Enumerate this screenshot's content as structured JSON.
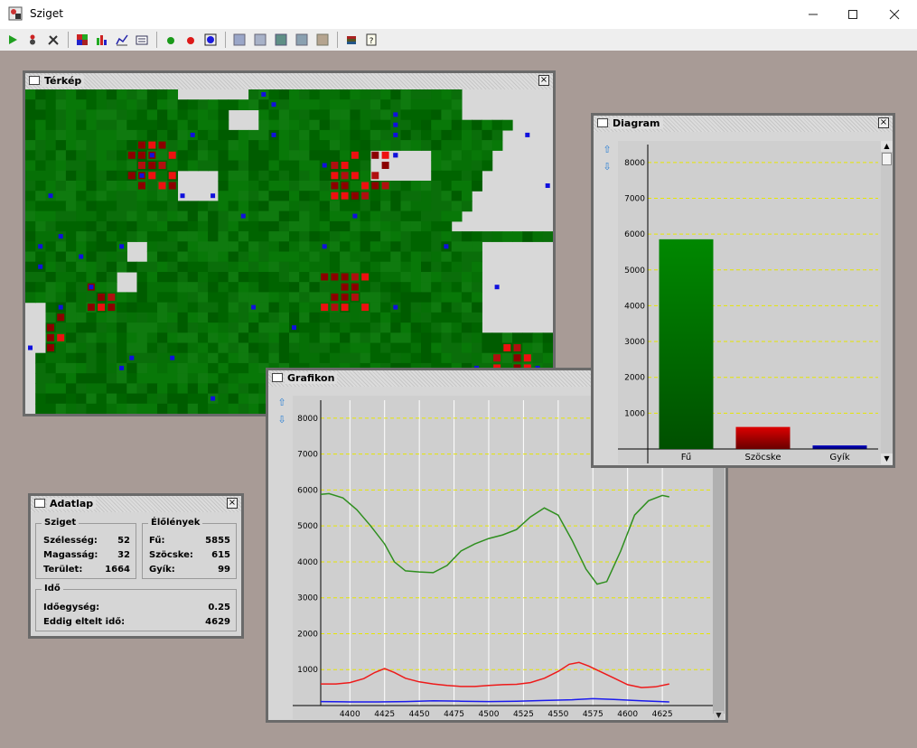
{
  "app": {
    "title": "Sziget"
  },
  "toolbar": {
    "icons": [
      "play-icon",
      "step-icon",
      "settings-tools-icon",
      "map-icon",
      "bar-chart-icon",
      "line-chart-icon",
      "data-sheet-icon",
      "green-creature-icon",
      "red-creature-icon",
      "blue-creature-icon",
      "grid-pattern-1-icon",
      "grid-pattern-2-icon",
      "grid-pattern-3-icon",
      "grid-pattern-4-icon",
      "grid-pattern-5-icon",
      "books-icon",
      "help-icon"
    ]
  },
  "map_window": {
    "title": "Térkép"
  },
  "diagram_window": {
    "title": "Diagram",
    "chart_data": {
      "type": "bar",
      "categories": [
        "Fű",
        "Szöcske",
        "Gyík"
      ],
      "values": [
        5855,
        615,
        99
      ],
      "ylim": [
        0,
        8500
      ],
      "yticks": [
        1000,
        2000,
        3000,
        4000,
        5000,
        6000,
        7000,
        8000
      ],
      "colors": [
        "#008800",
        "#dd0000",
        "#0000cc"
      ],
      "grid": true
    }
  },
  "graph_window": {
    "title": "Grafikon",
    "chart_data": {
      "type": "line",
      "xticks": [
        4400,
        4425,
        4450,
        4475,
        4500,
        4525,
        4550,
        4575,
        4600,
        4625
      ],
      "xlim": [
        4379,
        4662
      ],
      "ylim": [
        0,
        8500
      ],
      "yticks": [
        1000,
        2000,
        3000,
        4000,
        5000,
        6000,
        7000,
        8000
      ],
      "grid": true,
      "series": [
        {
          "color": "#2f8f1f",
          "x": [
            4379,
            4385,
            4395,
            4405,
            4415,
            4425,
            4432,
            4440,
            4450,
            4460,
            4470,
            4480,
            4490,
            4500,
            4510,
            4520,
            4530,
            4540,
            4550,
            4560,
            4570,
            4578,
            4585,
            4595,
            4605,
            4615,
            4625,
            4630
          ],
          "y": [
            5880,
            5900,
            5780,
            5450,
            5000,
            4500,
            4000,
            3750,
            3720,
            3700,
            3900,
            4300,
            4500,
            4650,
            4750,
            4900,
            5250,
            5500,
            5300,
            4600,
            3800,
            3380,
            3450,
            4300,
            5300,
            5700,
            5850,
            5810
          ]
        },
        {
          "color": "#ee1a1a",
          "x": [
            4379,
            4390,
            4400,
            4410,
            4418,
            4425,
            4432,
            4440,
            4450,
            4460,
            4470,
            4480,
            4490,
            4500,
            4510,
            4520,
            4530,
            4540,
            4550,
            4558,
            4565,
            4572,
            4580,
            4590,
            4600,
            4610,
            4620,
            4630
          ],
          "y": [
            600,
            600,
            640,
            750,
            920,
            1030,
            920,
            760,
            660,
            600,
            560,
            530,
            530,
            560,
            580,
            590,
            640,
            760,
            950,
            1150,
            1200,
            1100,
            950,
            770,
            580,
            500,
            520,
            600
          ]
        },
        {
          "color": "#1a1aee",
          "x": [
            4379,
            4400,
            4420,
            4440,
            4460,
            4480,
            4500,
            4520,
            4540,
            4560,
            4575,
            4590,
            4610,
            4630
          ],
          "y": [
            110,
            100,
            100,
            110,
            130,
            120,
            110,
            120,
            140,
            160,
            190,
            170,
            130,
            100
          ]
        }
      ]
    }
  },
  "adatlap_window": {
    "title": "Adatlap",
    "sziget": {
      "legend": "Sziget",
      "rows": [
        {
          "label": "Szélesség:",
          "value": "52"
        },
        {
          "label": "Magasság:",
          "value": "32"
        },
        {
          "label": "Terület:",
          "value": "1664"
        }
      ]
    },
    "elolenyek": {
      "legend": "Élőlények",
      "rows": [
        {
          "label": "Fű:",
          "value": "5855"
        },
        {
          "label": "Szöcske:",
          "value": "615"
        },
        {
          "label": "Gyík:",
          "value": "99"
        }
      ]
    },
    "ido": {
      "legend": "Idő",
      "rows": [
        {
          "label": "Időegység:",
          "value": "0.25"
        },
        {
          "label": "Eddig eltelt idő:",
          "value": "4629"
        }
      ]
    }
  }
}
